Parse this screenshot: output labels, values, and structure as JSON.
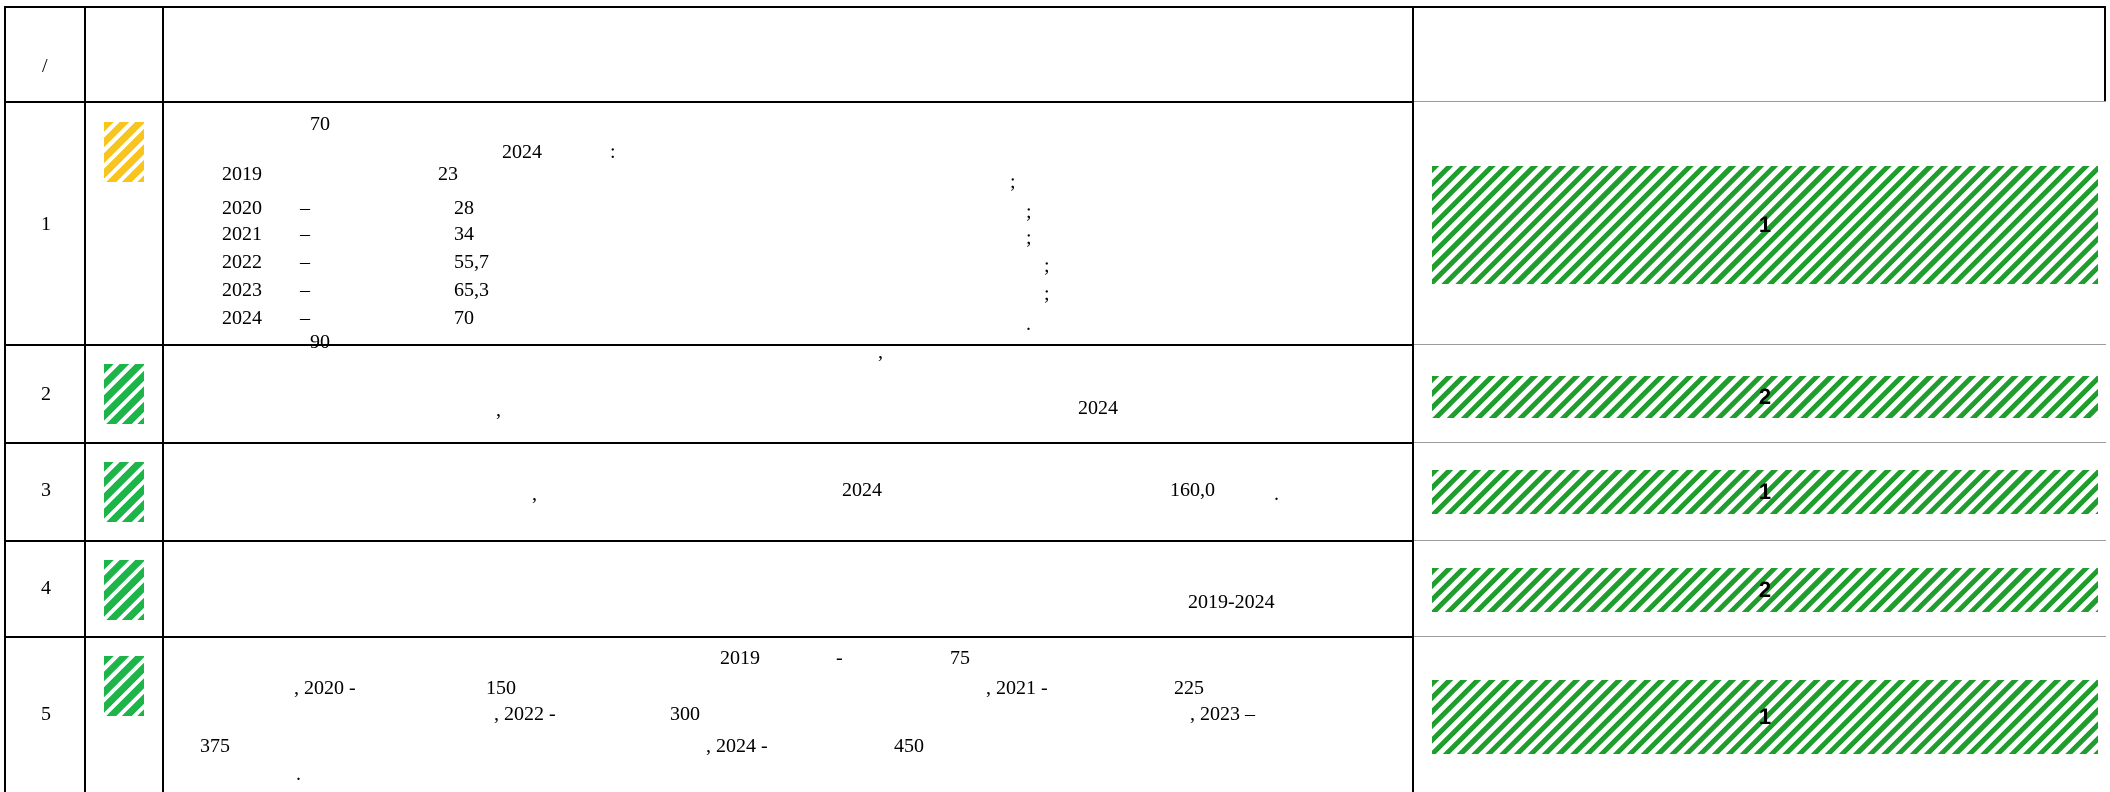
{
  "header": {
    "col_index": "/"
  },
  "rows": [
    {
      "index": "1",
      "badge_color": "#f7c51e",
      "lines": [
        "70",
        "2024",
        ":",
        "2019",
        "23",
        ";",
        "2020",
        "–",
        "28",
        ";",
        "2021",
        "–",
        "34",
        ";",
        "2022",
        "–",
        "55,7",
        ";",
        "2023",
        "–",
        "65,3",
        ";",
        "2024",
        "–",
        "70",
        "."
      ],
      "bar_label": "1"
    },
    {
      "index": "2",
      "badge_color": "#1db54a",
      "lines": [
        "90",
        ",",
        ",",
        "2024"
      ],
      "bar_label": "2"
    },
    {
      "index": "3",
      "badge_color": "#1db54a",
      "lines": [
        ",",
        "2024",
        "160,0",
        "."
      ],
      "bar_label": "1"
    },
    {
      "index": "4",
      "badge_color": "#1db54a",
      "lines": [
        "2019-2024"
      ],
      "bar_label": "2"
    },
    {
      "index": "5",
      "badge_color": "#1db54a",
      "lines": [
        "2019",
        "-",
        "75",
        ", 2020 -",
        "150",
        ", 2021 -",
        "225",
        ", 2022 -",
        "300",
        ", 2023 –",
        "375",
        ", 2024 -",
        "450",
        "."
      ],
      "bar_label": "1"
    }
  ]
}
